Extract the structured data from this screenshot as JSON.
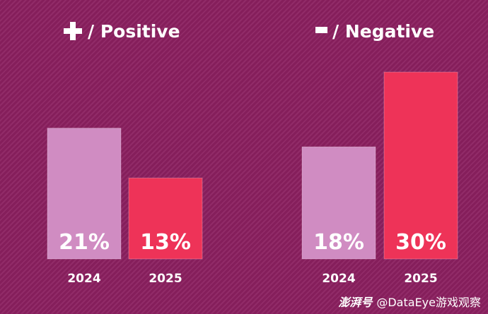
{
  "chart_data": [
    {
      "type": "bar",
      "title": "/ Positive",
      "sign_icon": "plus-icon",
      "categories": [
        "2024",
        "2025"
      ],
      "values": [
        21,
        13
      ],
      "value_labels": [
        "21%",
        "13%"
      ],
      "colors": [
        "#d08cc2",
        "#ee3358"
      ],
      "ylim": [
        0,
        35
      ],
      "xlabel": "",
      "ylabel": ""
    },
    {
      "type": "bar",
      "title": "/ Negative",
      "sign_icon": "minus-icon",
      "categories": [
        "2024",
        "2025"
      ],
      "values": [
        18,
        30
      ],
      "value_labels": [
        "18%",
        "30%"
      ],
      "colors": [
        "#d08cc2",
        "#ee3358"
      ],
      "ylim": [
        0,
        35
      ],
      "xlabel": "",
      "ylabel": ""
    }
  ],
  "watermark": {
    "logo_text": "澎湃号",
    "account": "@DataEye游戏观察"
  },
  "colors": {
    "background": "#8b1f5f",
    "text": "#ffffff"
  }
}
